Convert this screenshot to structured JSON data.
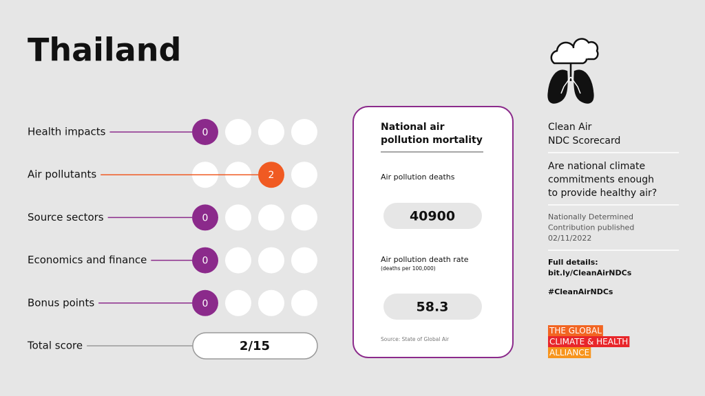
{
  "header": {
    "title": "Thailand"
  },
  "scores": [
    {
      "label": "Health impacts",
      "score": 0,
      "color": "#8b2a8b"
    },
    {
      "label": "Air pollutants",
      "score": 2,
      "color": "#f05a22"
    },
    {
      "label": "Source sectors",
      "score": 0,
      "color": "#8b2a8b"
    },
    {
      "label": "Economics and finance",
      "score": 0,
      "color": "#8b2a8b"
    },
    {
      "label": "Bonus points",
      "score": 0,
      "color": "#8b2a8b"
    }
  ],
  "total": {
    "label": "Total score",
    "value": "2/15"
  },
  "mortality": {
    "title": [
      "National air",
      "pollution mortality"
    ],
    "deaths_label": "Air pollution deaths",
    "deaths": 40900,
    "rate_label": "Air pollution death rate",
    "rate_note": "(deaths per 100,000)",
    "rate": 58.3,
    "source": "Source: State of Global Air"
  },
  "sidebar": {
    "title": [
      "Clean Air",
      "NDC Scorecard"
    ],
    "question": [
      "Are national climate",
      "commitments enough",
      "to provide healthy air?"
    ],
    "ndc": [
      "Nationally Determined",
      "Contribution published",
      "02/11/2022"
    ],
    "details": [
      "Full details:",
      "bit.ly/CleanAirNDCs"
    ],
    "hashtag": "#CleanAirNDCs",
    "logo": [
      "THE GLOBAL",
      "CLIMATE & HEALTH",
      "ALLIANCE"
    ]
  }
}
